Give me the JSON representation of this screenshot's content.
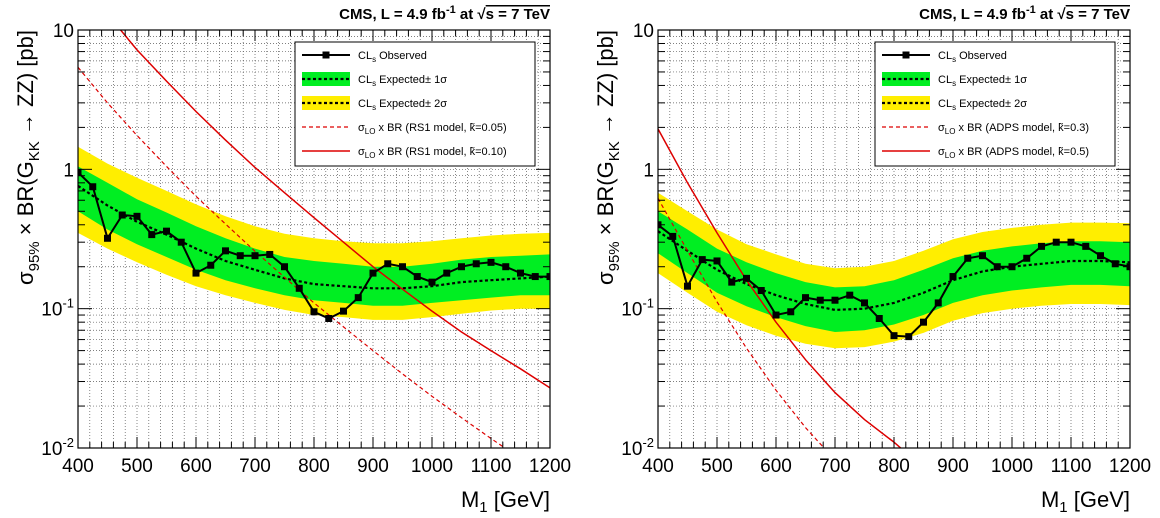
{
  "chart_data": [
    {
      "type": "line",
      "title": "CMS, L = 4.9 fb⁻¹ at √s = 7 TeV",
      "title_parts": {
        "lead": "CMS, L = 4.9 fb",
        "sup": "-1",
        "mid": " at ",
        "root": "√",
        "tail": "s = 7 TeV"
      },
      "xlabel": "M₁ [GeV]",
      "xlabel_parts": {
        "main": "M",
        "sub": "1",
        "unit": " [GeV]"
      },
      "ylabel": "σ95% × BR(GKK → ZZ) [pb]",
      "ylabel_parts": {
        "sigma": "σ",
        "sigma_sub": "95%",
        "mid": " × BR(G",
        "g_sub": "KK",
        "arrow": " → ZZ) [pb]"
      },
      "xlim": [
        400,
        1200
      ],
      "ylim": [
        0.01,
        10
      ],
      "yscale": "log",
      "grid": true,
      "legend_placement": "top-right",
      "x_ticks": [
        "400",
        "500",
        "600",
        "700",
        "800",
        "900",
        "1000",
        "1100",
        "1200"
      ],
      "y_ticks": [
        {
          "base": "10",
          "exp": "-2"
        },
        {
          "base": "10",
          "exp": "-1"
        },
        {
          "base": "1",
          "exp": ""
        },
        {
          "base": "10",
          "exp": ""
        }
      ],
      "legend": [
        {
          "style": "observed",
          "text": "CL",
          "sub": "s",
          "rest": " Observed"
        },
        {
          "style": "band1",
          "text": "CL",
          "sub": "s",
          "rest": " Expected± 1σ"
        },
        {
          "style": "band2",
          "text": "CL",
          "sub": "s",
          "rest": " Expected± 2σ"
        },
        {
          "style": "dashed",
          "text": "σ",
          "sub": "LO",
          "rest": " x BR (RS1 model, k̃=0.05)"
        },
        {
          "style": "solid",
          "text": "σ",
          "sub": "LO",
          "rest": " x BR (RS1 model, k̃=0.10)"
        }
      ],
      "colors": {
        "band1": "#00ee22",
        "band2": "#ffee00",
        "observed": "#000000",
        "theory": "#dd0000"
      },
      "band_x": [
        400,
        450,
        500,
        550,
        600,
        650,
        700,
        750,
        800,
        850,
        900,
        950,
        1000,
        1050,
        1100,
        1150,
        1200
      ],
      "expected": [
        0.76,
        0.55,
        0.42,
        0.34,
        0.27,
        0.22,
        0.19,
        0.165,
        0.15,
        0.145,
        0.14,
        0.14,
        0.145,
        0.155,
        0.16,
        0.165,
        0.17
      ],
      "band1_lo": [
        0.5,
        0.37,
        0.29,
        0.235,
        0.19,
        0.16,
        0.14,
        0.125,
        0.115,
        0.11,
        0.105,
        0.105,
        0.11,
        0.115,
        0.12,
        0.125,
        0.125
      ],
      "band1_hi": [
        1.05,
        0.8,
        0.61,
        0.49,
        0.39,
        0.32,
        0.27,
        0.235,
        0.22,
        0.21,
        0.2,
        0.2,
        0.21,
        0.225,
        0.235,
        0.24,
        0.245
      ],
      "band2_lo": [
        0.35,
        0.27,
        0.215,
        0.175,
        0.145,
        0.125,
        0.11,
        0.098,
        0.09,
        0.087,
        0.083,
        0.083,
        0.087,
        0.092,
        0.097,
        0.1,
        0.1
      ],
      "band2_hi": [
        1.45,
        1.1,
        0.87,
        0.7,
        0.56,
        0.46,
        0.39,
        0.345,
        0.32,
        0.305,
        0.295,
        0.295,
        0.305,
        0.32,
        0.335,
        0.345,
        0.35
      ],
      "observed_x": [
        400,
        425,
        450,
        475,
        500,
        525,
        550,
        575,
        600,
        625,
        650,
        675,
        700,
        725,
        750,
        775,
        800,
        825,
        850,
        875,
        900,
        925,
        950,
        975,
        1000,
        1025,
        1050,
        1075,
        1100,
        1125,
        1150,
        1175,
        1200
      ],
      "observed_y": [
        0.95,
        0.75,
        0.32,
        0.47,
        0.46,
        0.34,
        0.36,
        0.3,
        0.18,
        0.205,
        0.26,
        0.24,
        0.24,
        0.245,
        0.2,
        0.14,
        0.095,
        0.085,
        0.096,
        0.12,
        0.18,
        0.21,
        0.2,
        0.17,
        0.155,
        0.18,
        0.2,
        0.21,
        0.215,
        0.2,
        0.18,
        0.17,
        0.17
      ],
      "theory_solid_x": [
        450,
        500,
        550,
        600,
        650,
        700,
        750,
        800,
        850,
        900,
        950,
        1000,
        1050,
        1100,
        1150,
        1200
      ],
      "theory_solid_y": [
        13,
        7.2,
        4.3,
        2.6,
        1.62,
        1.03,
        0.68,
        0.45,
        0.3,
        0.2,
        0.138,
        0.096,
        0.068,
        0.05,
        0.037,
        0.027
      ],
      "theory_dashed_x": [
        400,
        450,
        500,
        550,
        600,
        650,
        700,
        750,
        800,
        850,
        900,
        950,
        1000,
        1050,
        1100,
        1150,
        1200
      ],
      "theory_dashed_y": [
        5.4,
        3.0,
        1.75,
        1.05,
        0.64,
        0.405,
        0.258,
        0.168,
        0.11,
        0.074,
        0.05,
        0.034,
        0.0235,
        0.0165,
        0.0117,
        0.0084,
        0.006
      ]
    },
    {
      "type": "line",
      "title": "CMS, L = 4.9 fb⁻¹ at √s = 7 TeV",
      "title_parts": {
        "lead": "CMS, L = 4.9 fb",
        "sup": "-1",
        "mid": " at ",
        "root": "√",
        "tail": "s = 7 TeV"
      },
      "xlabel": "M₁ [GeV]",
      "xlabel_parts": {
        "main": "M",
        "sub": "1",
        "unit": " [GeV]"
      },
      "ylabel": "σ95% × BR(GKK → ZZ) [pb]",
      "ylabel_parts": {
        "sigma": "σ",
        "sigma_sub": "95%",
        "mid": " × BR(G",
        "g_sub": "KK",
        "arrow": " → ZZ) [pb]"
      },
      "xlim": [
        400,
        1200
      ],
      "ylim": [
        0.01,
        10
      ],
      "yscale": "log",
      "grid": true,
      "legend_placement": "top-right",
      "x_ticks": [
        "400",
        "500",
        "600",
        "700",
        "800",
        "900",
        "1000",
        "1100",
        "1200"
      ],
      "y_ticks": [
        {
          "base": "10",
          "exp": "-2"
        },
        {
          "base": "10",
          "exp": "-1"
        },
        {
          "base": "1",
          "exp": ""
        },
        {
          "base": "10",
          "exp": ""
        }
      ],
      "legend": [
        {
          "style": "observed",
          "text": "CL",
          "sub": "s",
          "rest": " Observed"
        },
        {
          "style": "band1",
          "text": "CL",
          "sub": "s",
          "rest": " Expected± 1σ"
        },
        {
          "style": "band2",
          "text": "CL",
          "sub": "s",
          "rest": " Expected± 2σ"
        },
        {
          "style": "dashed",
          "text": "σ",
          "sub": "LO",
          "rest": " x BR (ADPS model, k̃=0.3)"
        },
        {
          "style": "solid",
          "text": "σ",
          "sub": "LO",
          "rest": " x BR (ADPS model, k̃=0.5)"
        }
      ],
      "colors": {
        "band1": "#00ee22",
        "band2": "#ffee00",
        "observed": "#000000",
        "theory": "#dd0000"
      },
      "band_x": [
        400,
        450,
        500,
        550,
        600,
        650,
        700,
        750,
        800,
        850,
        900,
        950,
        1000,
        1050,
        1100,
        1150,
        1200
      ],
      "expected": [
        0.36,
        0.26,
        0.19,
        0.15,
        0.125,
        0.108,
        0.098,
        0.1,
        0.11,
        0.13,
        0.16,
        0.185,
        0.2,
        0.21,
        0.22,
        0.22,
        0.215
      ],
      "band1_lo": [
        0.25,
        0.18,
        0.13,
        0.104,
        0.087,
        0.075,
        0.068,
        0.07,
        0.077,
        0.09,
        0.11,
        0.125,
        0.135,
        0.142,
        0.148,
        0.148,
        0.145
      ],
      "band1_hi": [
        0.5,
        0.37,
        0.27,
        0.215,
        0.18,
        0.155,
        0.142,
        0.145,
        0.16,
        0.19,
        0.23,
        0.26,
        0.28,
        0.295,
        0.305,
        0.305,
        0.3
      ],
      "band2_lo": [
        0.18,
        0.13,
        0.095,
        0.076,
        0.064,
        0.056,
        0.052,
        0.053,
        0.058,
        0.067,
        0.082,
        0.093,
        0.1,
        0.105,
        0.108,
        0.108,
        0.106
      ],
      "band2_hi": [
        0.68,
        0.5,
        0.37,
        0.29,
        0.245,
        0.21,
        0.195,
        0.2,
        0.22,
        0.26,
        0.315,
        0.355,
        0.38,
        0.4,
        0.415,
        0.415,
        0.41
      ],
      "observed_x": [
        400,
        425,
        450,
        475,
        500,
        525,
        550,
        575,
        600,
        625,
        650,
        675,
        700,
        725,
        750,
        775,
        800,
        825,
        850,
        875,
        900,
        925,
        950,
        975,
        1000,
        1025,
        1050,
        1075,
        1100,
        1125,
        1150,
        1175,
        1200
      ],
      "observed_y": [
        0.4,
        0.33,
        0.145,
        0.225,
        0.22,
        0.155,
        0.165,
        0.135,
        0.09,
        0.095,
        0.12,
        0.115,
        0.115,
        0.125,
        0.11,
        0.085,
        0.064,
        0.063,
        0.08,
        0.11,
        0.17,
        0.23,
        0.24,
        0.2,
        0.2,
        0.23,
        0.28,
        0.3,
        0.3,
        0.28,
        0.24,
        0.21,
        0.2
      ],
      "theory_solid_x": [
        400,
        450,
        500,
        550,
        600,
        650,
        700,
        750,
        800,
        850
      ],
      "theory_solid_y": [
        1.95,
        0.8,
        0.35,
        0.16,
        0.08,
        0.043,
        0.025,
        0.016,
        0.011,
        0.0072
      ],
      "theory_dashed_x": [
        400,
        450,
        500,
        550,
        600,
        650,
        700,
        750
      ],
      "theory_dashed_y": [
        0.62,
        0.26,
        0.112,
        0.052,
        0.026,
        0.014,
        0.0082,
        0.0052
      ]
    }
  ]
}
